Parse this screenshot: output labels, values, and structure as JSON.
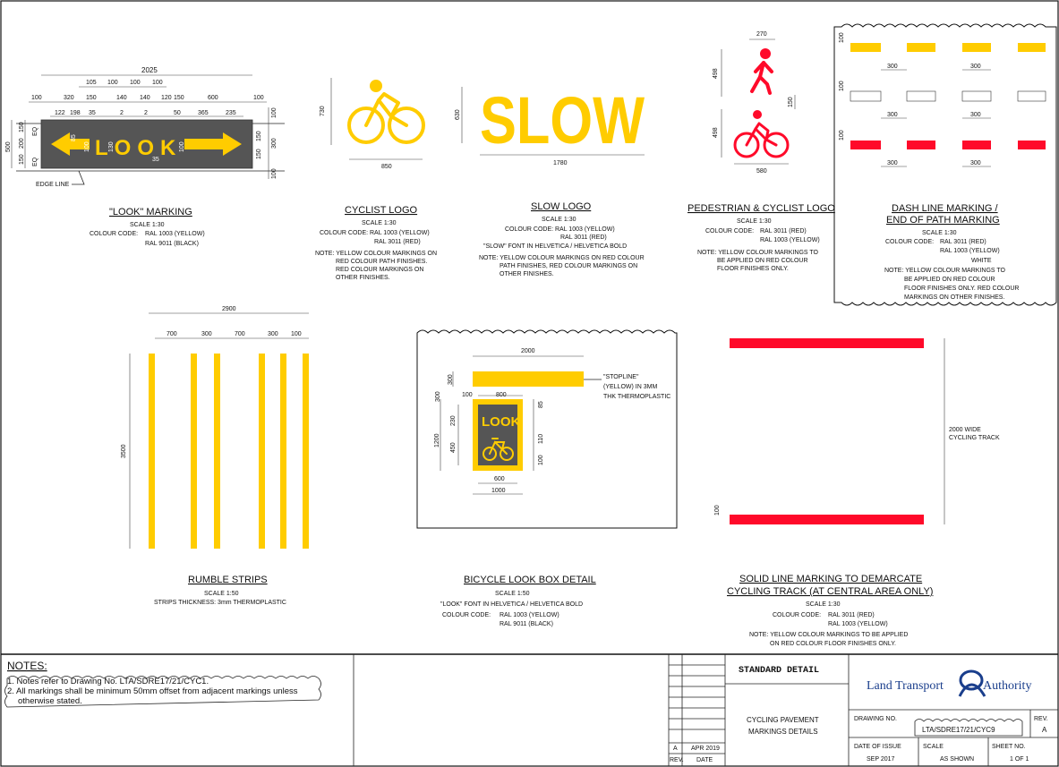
{
  "look_marking": {
    "title": "\"LOOK\" MARKING",
    "scale": "SCALE 1:30",
    "colour_label": "COLOUR CODE:",
    "colour_1": "RAL 1003 (YELLOW)",
    "colour_2": "RAL 9011 (BLACK)",
    "word": "LOOK",
    "edge_line": "EDGE LINE",
    "dim_total": "2025",
    "dims_top_row": [
      "105",
      "100",
      "100",
      "100"
    ],
    "dims_second_row": [
      "100",
      "320",
      "150",
      "150",
      "140",
      "140",
      "120",
      "150",
      "600",
      "100"
    ],
    "dims_third_row": [
      "122",
      "198",
      "35",
      "2",
      "2",
      "50",
      "365",
      "235"
    ],
    "dims_left": [
      "500",
      "150",
      "200",
      "150",
      "EQ",
      "EQ"
    ],
    "dims_right": [
      "100",
      "150",
      "300",
      "150",
      "100"
    ],
    "dims_inner": [
      "85",
      "100",
      "130",
      "100",
      "35"
    ]
  },
  "cyclist_logo": {
    "title": "CYCLIST LOGO",
    "scale": "SCALE 1:30",
    "colour_line": "COLOUR CODE: RAL 1003 (YELLOW)",
    "colour_2": "RAL 3011  (RED)",
    "note_1": "NOTE: YELLOW COLOUR MARKINGS ON",
    "note_2": "RED COLOUR PATH FINISHES.",
    "note_3": "RED COLOUR MARKINGS ON",
    "note_4": "OTHER FINISHES.",
    "dim_h": "730",
    "dim_w": "850"
  },
  "slow_logo": {
    "title": "SLOW LOGO",
    "scale": "SCALE 1:30",
    "colour_line": "COLOUR CODE: RAL 1003 (YELLOW)",
    "colour_2": "RAL 3011  (RED)",
    "font_note": "\"SLOW\" FONT IN HELVETICA / HELVETICA BOLD",
    "note_1": "NOTE: YELLOW COLOUR MARKINGS ON RED COLOUR",
    "note_2": "PATH FINISHES, RED COLOUR MARKINGS ON",
    "note_3": "OTHER FINISHES.",
    "word": "SLOW",
    "dim_h": "630",
    "dim_w": "1780"
  },
  "ped_cyclist_logo": {
    "title": "PEDESTRIAN & CYCLIST LOGO",
    "scale": "SCALE 1:30",
    "colour_label": "COLOUR CODE:",
    "colour_1": "RAL 3011  (RED)",
    "colour_2": "RAL 1003 (YELLOW)",
    "note_1": "NOTE: YELLOW COLOUR MARKINGS TO",
    "note_2": "BE APPLIED ON RED COLOUR",
    "note_3": "FLOOR FINISHES ONLY.",
    "dim_top": "270",
    "dim_ped": "498",
    "dim_gap": "150",
    "dim_cyc": "498",
    "dim_w": "580"
  },
  "dash_line": {
    "title_1": "DASH LINE MARKING /",
    "title_2": "END OF PATH MARKING",
    "scale": "SCALE 1:30",
    "colour_label": "COLOUR CODE:",
    "colour_1": "RAL 3011 (RED)",
    "colour_2": "RAL 1003 (YELLOW)",
    "colour_3": "WHITE",
    "note_1": "NOTE: YELLOW COLOUR MARKINGS TO",
    "note_2": "BE APPLIED ON RED COLOUR",
    "note_3": "FLOOR FINISHES ONLY. RED COLOUR",
    "note_4": "MARKINGS ON OTHER FINISHES.",
    "dim_h": "100",
    "dim_gap": "300"
  },
  "rumble": {
    "title": "RUMBLE STRIPS",
    "scale": "SCALE 1:50",
    "thickness": "STRIPS THICKNESS: 3mm THERMOPLASTIC",
    "dim_total": "2900",
    "dims": [
      "700",
      "300",
      "700",
      "300",
      "100"
    ],
    "dim_h": "3500"
  },
  "look_box": {
    "title": "BICYCLE LOOK BOX DETAIL",
    "scale": "SCALE 1:50",
    "font_note": "\"LOOK\" FONT IN HELVETICA / HELVETICA BOLD",
    "colour_label": "COLOUR CODE:",
    "colour_1": "RAL 1003 (YELLOW)",
    "colour_2": "RAL 9011 (BLACK)",
    "word": "LOOK",
    "stopline_1": "\"STOPLINE\"",
    "stopline_2": "(YELLOW) IN 3MM",
    "stopline_3": "THK THERMOPLASTIC",
    "dim_top": "2000",
    "dim_800": "800",
    "dim_100": "100",
    "dim_300": "300",
    "dim_1200": "1200",
    "dim_230": "230",
    "dim_450": "450",
    "dim_85": "85",
    "dim_110": "110",
    "dim_100b": "100",
    "dim_600": "600",
    "dim_1000": "1000"
  },
  "solid_line": {
    "title_1": "SOLID LINE MARKING TO DEMARCATE",
    "title_2": "CYCLING TRACK (AT CENTRAL AREA ONLY)",
    "scale": "SCALE 1:30",
    "colour_label": "COLOUR CODE:",
    "colour_1": "RAL 3011 (RED)",
    "colour_2": "RAL 1003 (YELLOW)",
    "note_1": "NOTE: YELLOW COLOUR MARKINGS TO BE APPLIED",
    "note_2": "ON RED COLOUR FLOOR FINISHES ONLY.",
    "width_1": "2000 WIDE",
    "width_2": "CYCLING TRACK",
    "dim_100": "100"
  },
  "notes": {
    "heading": "NOTES:",
    "note_1": "1. Notes refer to Drawing No. LTA/SDRE17/21/CYC1.",
    "note_2": "2. All markings shall be minimum 50mm offset from adjacent markings unless",
    "note_3": "otherwise stated."
  },
  "title_block": {
    "standard_detail": "STANDARD   DETAIL",
    "drawing_title_1": "CYCLING PAVEMENT",
    "drawing_title_2": "MARKINGS DETAILS",
    "authority_1": "Land Transport",
    "authority_2": "Authority",
    "drawing_no_label": "DRAWING NO.",
    "drawing_no": "LTA/SDRE17/21/CYC9",
    "rev_label": "REV.",
    "rev": "A",
    "date_issue_label": "DATE OF ISSUE",
    "date_issue": "SEP 2017",
    "scale_label": "SCALE",
    "scale": "AS SHOWN",
    "sheet_label": "SHEET NO.",
    "sheet": "1 OF 1",
    "rev_row_rev": "A",
    "rev_row_date": "APR 2019",
    "rev_col_label": "REV.",
    "date_col_label": "DATE"
  },
  "colors": {
    "yellow": "#ffcc00",
    "red": "#ff0a2a",
    "black_marking": "#555555"
  }
}
